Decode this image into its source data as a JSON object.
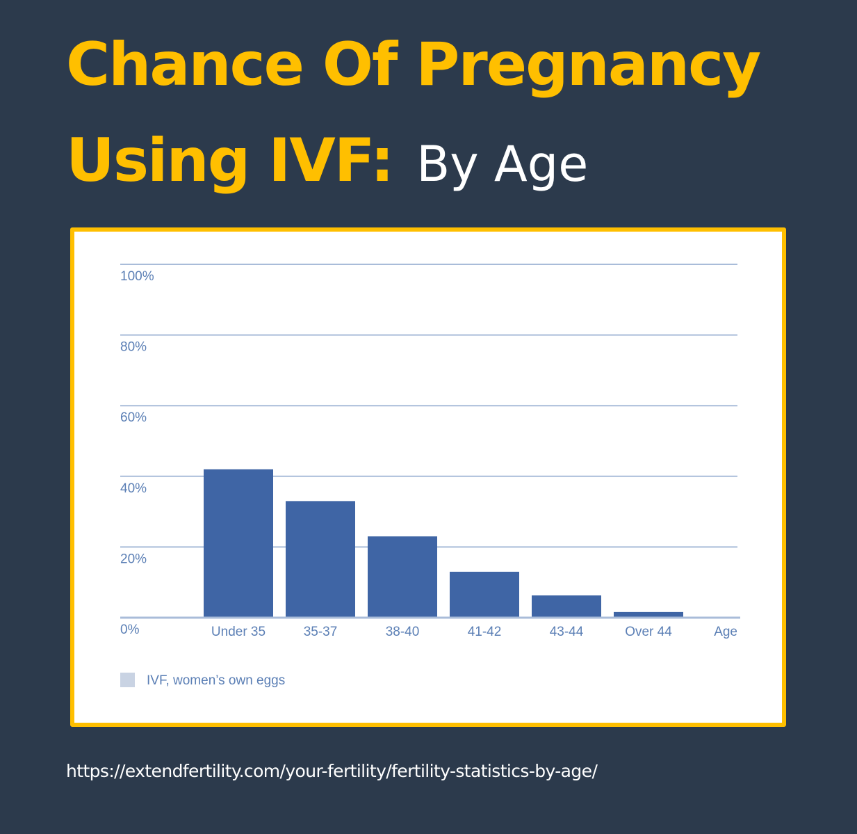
{
  "header": {
    "title_line1": "Chance Of Pregnancy",
    "title_line2": "Using IVF:",
    "subtitle": "By Age"
  },
  "footer": {
    "source_url": "https://extendfertility.com/your-fertility/fertility-statistics-by-age/"
  },
  "colors": {
    "background": "#2c3a4c",
    "title_accent": "#ffbf00",
    "frame_border": "#ffbf00",
    "bar": "#3f65a5",
    "gridline": "#a9bcd9",
    "axis_text": "#5b7fb5",
    "legend_swatch": "#c9d3e3"
  },
  "chart_data": {
    "type": "bar",
    "categories": [
      "Under 35",
      "35-37",
      "38-40",
      "41-42",
      "43-44",
      "Over 44"
    ],
    "series": [
      {
        "name": "IVF, women’s own eggs",
        "values": [
          42,
          33,
          23,
          13,
          6.3,
          1.6
        ]
      }
    ],
    "xlabel": "Age",
    "ylabel": "",
    "ylim": [
      0,
      100
    ],
    "y_ticks": [
      0,
      20,
      40,
      60,
      80,
      100
    ],
    "y_tick_labels": [
      "0%",
      "20%",
      "40%",
      "60%",
      "80%",
      "100%"
    ],
    "grid": true,
    "legend_placement": "bottom-left"
  }
}
